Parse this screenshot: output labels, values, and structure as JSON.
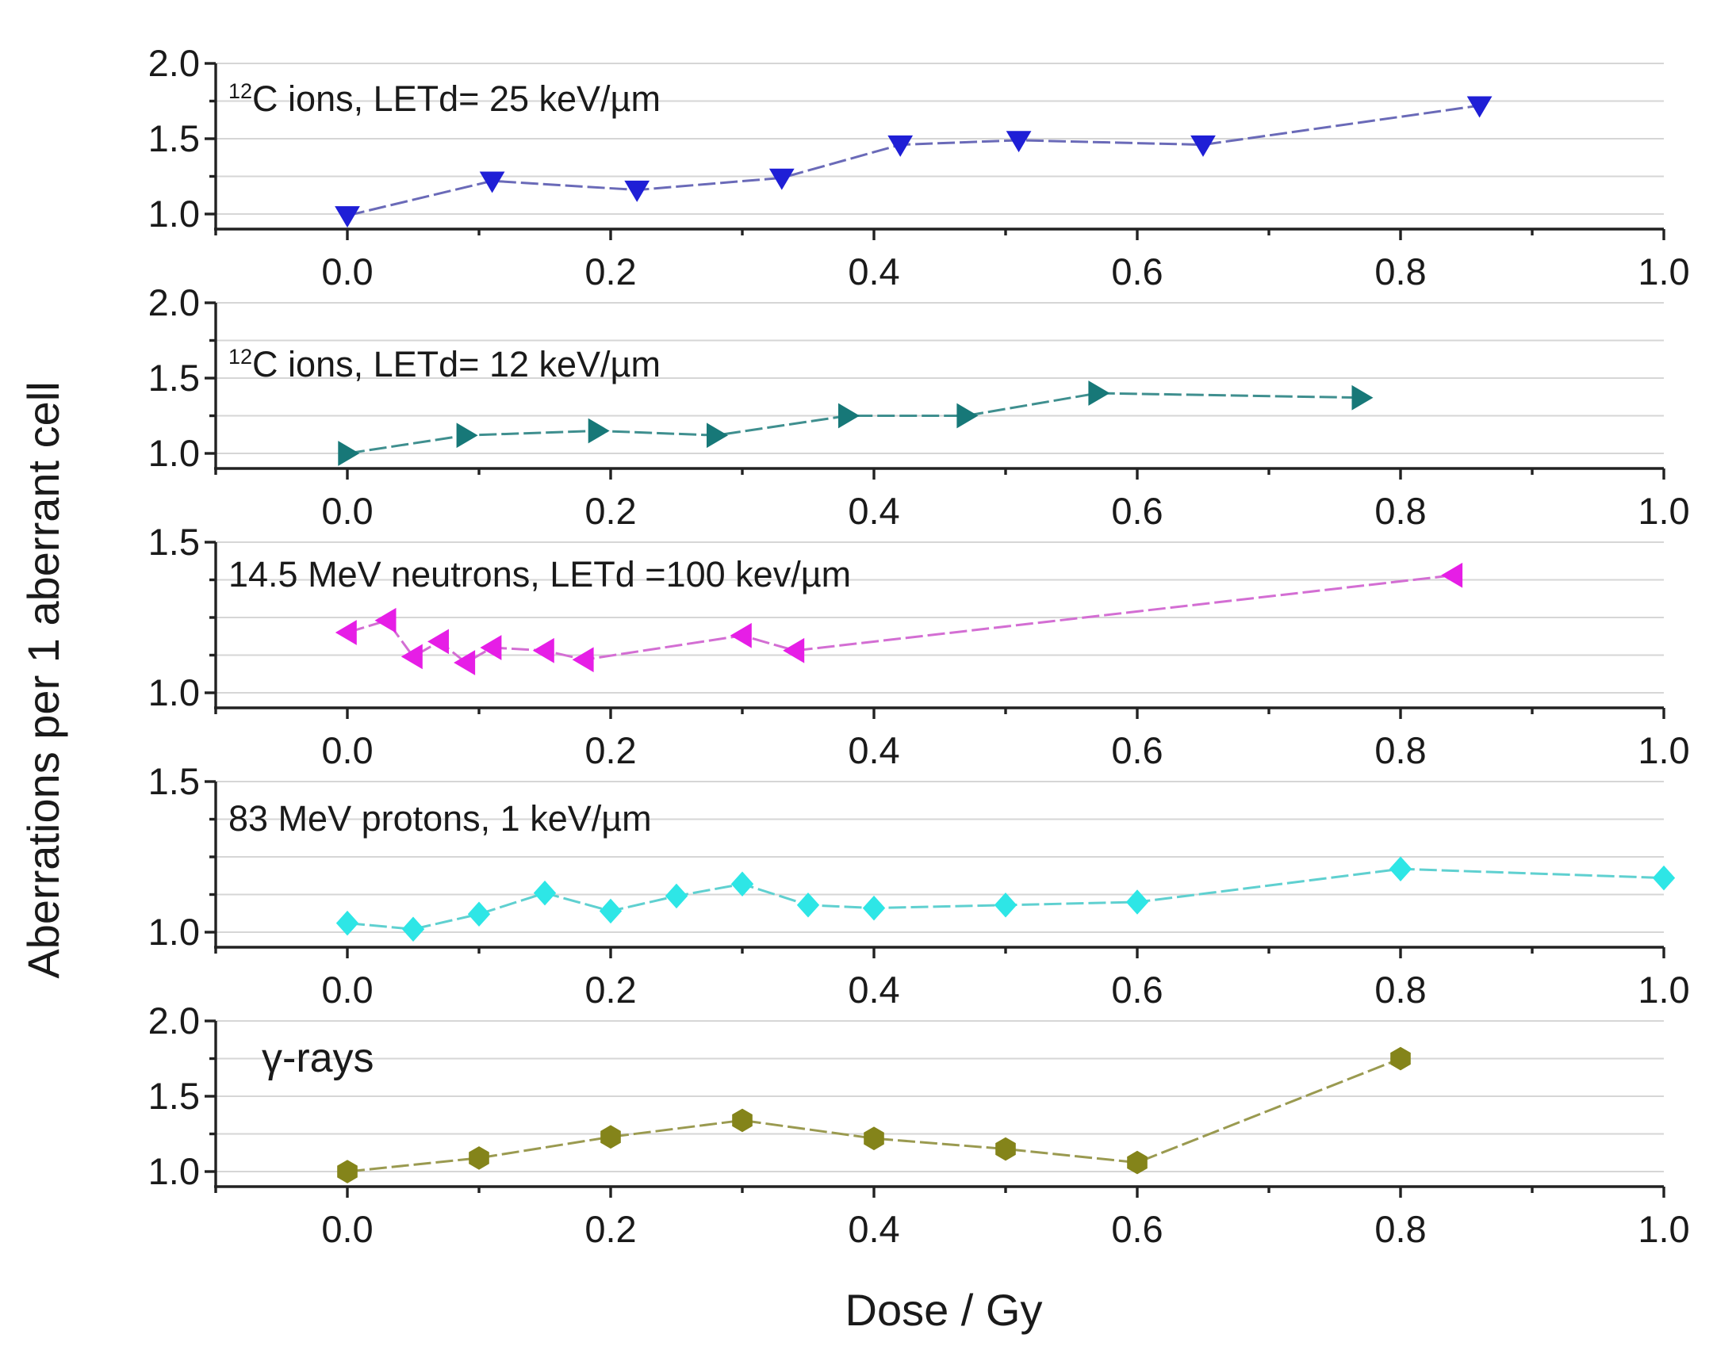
{
  "chart_data": [
    {
      "type": "line",
      "annotation": {
        "sup": "12",
        "text": "C ions, LETd= 25 keV/µm"
      },
      "marker": "triangle-down",
      "color": "#1f1fd6",
      "line_color": "#6a6ab8",
      "x": [
        0.0,
        0.11,
        0.22,
        0.33,
        0.42,
        0.51,
        0.65,
        0.86
      ],
      "y": [
        0.99,
        1.22,
        1.16,
        1.24,
        1.46,
        1.49,
        1.46,
        1.72
      ],
      "xlim": [
        -0.1,
        1.0
      ],
      "ylim": [
        0.9,
        2.0
      ],
      "xticks": [
        "0.0",
        "0.2",
        "0.4",
        "0.6",
        "0.8",
        "1.0"
      ],
      "yticks": [
        "1.0",
        "1.5",
        "2.0"
      ]
    },
    {
      "type": "line",
      "annotation": {
        "sup": "12",
        "text": "C ions, LETd= 12 keV/µm"
      },
      "marker": "triangle-right",
      "color": "#177878",
      "line_color": "#3f8f8f",
      "x": [
        0.0,
        0.09,
        0.19,
        0.28,
        0.38,
        0.47,
        0.57,
        0.77
      ],
      "y": [
        1.0,
        1.12,
        1.15,
        1.12,
        1.25,
        1.25,
        1.4,
        1.37
      ],
      "xlim": [
        -0.1,
        1.0
      ],
      "ylim": [
        0.9,
        2.0
      ],
      "xticks": [
        "0.0",
        "0.2",
        "0.4",
        "0.6",
        "0.8",
        "1.0"
      ],
      "yticks": [
        "1.0",
        "1.5",
        "2.0"
      ]
    },
    {
      "type": "line",
      "annotation": {
        "text": "14.5 MeV neutrons, LETd =100 kev/µm"
      },
      "marker": "triangle-left",
      "color": "#e61ee6",
      "line_color": "#d36ed3",
      "x": [
        0.0,
        0.03,
        0.05,
        0.07,
        0.09,
        0.11,
        0.15,
        0.18,
        0.3,
        0.34,
        0.84
      ],
      "y": [
        1.2,
        1.24,
        1.12,
        1.17,
        1.1,
        1.15,
        1.14,
        1.11,
        1.19,
        1.14,
        1.39
      ],
      "xlim": [
        -0.1,
        1.0
      ],
      "ylim": [
        0.95,
        1.5
      ],
      "xticks": [
        "0.0",
        "0.2",
        "0.4",
        "0.6",
        "0.8",
        "1.0"
      ],
      "yticks": [
        "1.0",
        "1.5"
      ]
    },
    {
      "type": "line",
      "annotation": {
        "text": "83 MeV protons, 1 keV/µm"
      },
      "marker": "diamond",
      "color": "#2ee6e6",
      "line_color": "#5fd0d0",
      "x": [
        0.0,
        0.05,
        0.1,
        0.15,
        0.2,
        0.25,
        0.3,
        0.35,
        0.4,
        0.5,
        0.6,
        0.8,
        1.0
      ],
      "y": [
        1.03,
        1.01,
        1.06,
        1.13,
        1.07,
        1.12,
        1.16,
        1.09,
        1.08,
        1.09,
        1.1,
        1.21,
        1.18
      ],
      "xlim": [
        -0.1,
        1.0
      ],
      "ylim": [
        0.95,
        1.5
      ],
      "xticks": [
        "0.0",
        "0.2",
        "0.4",
        "0.6",
        "0.8",
        "1.0"
      ],
      "yticks": [
        "1.0",
        "1.5"
      ]
    },
    {
      "type": "line",
      "annotation": {
        "text": "γ-rays"
      },
      "marker": "hexagon",
      "color": "#84841a",
      "line_color": "#9a9a50",
      "x": [
        0.0,
        0.1,
        0.2,
        0.3,
        0.4,
        0.5,
        0.6,
        0.8
      ],
      "y": [
        1.0,
        1.09,
        1.23,
        1.34,
        1.22,
        1.15,
        1.06,
        1.75
      ],
      "xlim": [
        -0.1,
        1.0
      ],
      "ylim": [
        0.9,
        2.0
      ],
      "xticks": [
        "0.0",
        "0.2",
        "0.4",
        "0.6",
        "0.8",
        "1.0"
      ],
      "yticks": [
        "1.0",
        "1.5",
        "2.0"
      ]
    }
  ],
  "axes": {
    "ylabel": "Aberrations per 1 aberrant cell",
    "xlabel": "Dose / Gy"
  }
}
